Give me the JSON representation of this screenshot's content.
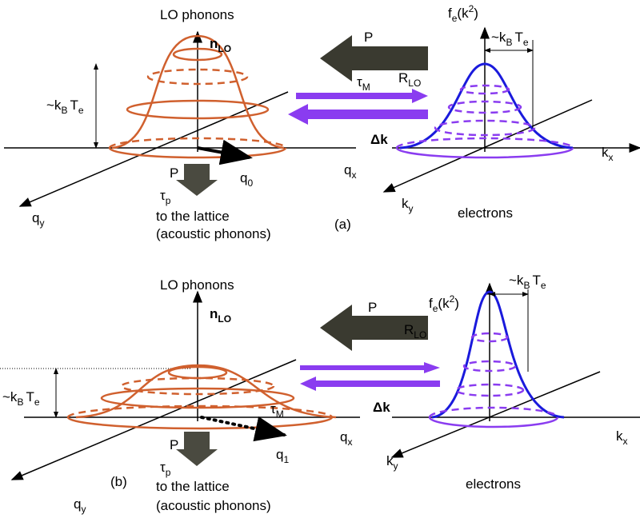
{
  "panels": [
    {
      "label": "(a)",
      "lo_title": "LO phonons",
      "n_lo": {
        "n": "n",
        "sub": "LO"
      },
      "energy_ph": {
        "k": "~k",
        "k_sub": "B",
        "t": "T",
        "t_sub": "e"
      },
      "q_x": {
        "q": "q",
        "sub": "x"
      },
      "q_y": {
        "q": "q",
        "sub": "y"
      },
      "q_wave": {
        "q": "q",
        "sub": "0"
      },
      "p_lattice": "P",
      "tau_p": {
        "t": "τ",
        "sub": "p"
      },
      "lattice_1": "to the lattice",
      "lattice_2": "(acoustic phonons)",
      "p_emission": "P",
      "r_lo": {
        "r": "R",
        "sub": "LO"
      },
      "tau_m": {
        "t": "τ",
        "sub": "M"
      },
      "delta_k": "Δk",
      "fe": {
        "f": "f",
        "sub": "e",
        "arg": "(k",
        "sup": "2",
        "close": ")"
      },
      "energy_el": {
        "k": "~k",
        "k_sub": "B",
        "t": "T",
        "t_sub": "e"
      },
      "k_x": {
        "k": "k",
        "sub": "x"
      },
      "k_y": {
        "k": "k",
        "sub": "y"
      },
      "electrons": "electrons"
    },
    {
      "label": "(b)",
      "lo_title": "LO phonons",
      "n_lo": {
        "n": "n",
        "sub": "LO"
      },
      "energy_ph": {
        "k": "~k",
        "k_sub": "B",
        "t": "T",
        "t_sub": "e"
      },
      "q_x": {
        "q": "q",
        "sub": "x"
      },
      "q_y": {
        "q": "q",
        "sub": "y"
      },
      "q_wave": {
        "q": "q",
        "sub": "1"
      },
      "p_lattice": "P",
      "tau_p": {
        "t": "τ",
        "sub": "p"
      },
      "lattice_1": "to the lattice",
      "lattice_2": "(acoustic phonons)",
      "p_emission": "P",
      "r_lo": {
        "r": "R",
        "sub": "LO"
      },
      "tau_m": {
        "t": "τ",
        "sub": "M"
      },
      "delta_k": "Δk",
      "fe": {
        "f": "f",
        "sub": "e",
        "arg": "(k",
        "sup": "2",
        "close": ")"
      },
      "energy_el": {
        "k": "~k",
        "k_sub": "B",
        "t": "T",
        "t_sub": "e"
      },
      "k_x": {
        "k": "k",
        "sub": "x"
      },
      "k_y": {
        "k": "k",
        "sub": "y"
      },
      "electrons": "electrons"
    }
  ]
}
